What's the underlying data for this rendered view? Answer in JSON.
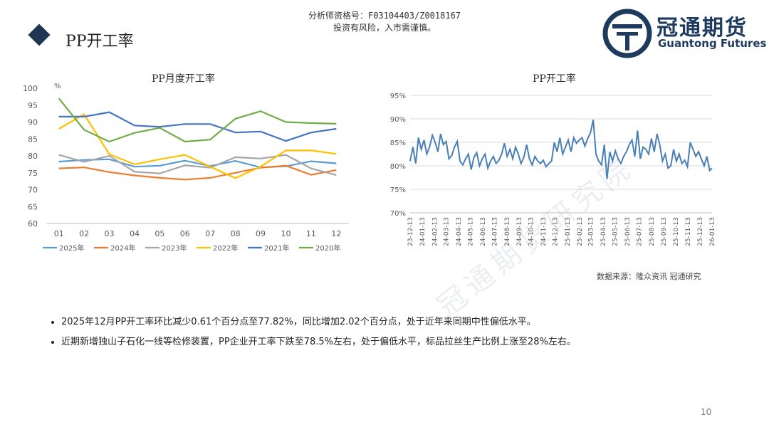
{
  "header": {
    "analyst_line1": "分析师资格号：F03104403/Z0018167",
    "analyst_line2": "投资有风险，入市需谨慎。",
    "page_title": "PP开工率",
    "logo_cn": "冠通期货",
    "logo_en": "Guantong Futures"
  },
  "colors": {
    "brand": "#1e3a5f"
  },
  "chart_data": [
    {
      "type": "line",
      "title": "PP月度开工率",
      "unit_mark": "%",
      "categories": [
        "01",
        "02",
        "03",
        "04",
        "05",
        "06",
        "07",
        "08",
        "09",
        "10",
        "11",
        "12"
      ],
      "ylim": [
        60,
        100
      ],
      "yticks": [
        60,
        65,
        70,
        75,
        80,
        85,
        90,
        95,
        100
      ],
      "grid": false,
      "legend_position": "bottom",
      "series": [
        {
          "name": "2025年",
          "color": "#5b9bd5",
          "values": [
            78.3,
            78.8,
            79.0,
            76.8,
            77.1,
            78.6,
            77.0,
            78.5,
            76.6,
            76.9,
            78.4,
            77.8
          ]
        },
        {
          "name": "2024年",
          "color": "#ed7d31",
          "values": [
            76.3,
            76.6,
            75.2,
            74.2,
            73.5,
            73.0,
            73.5,
            75.0,
            76.5,
            77.1,
            74.4,
            75.8
          ]
        },
        {
          "name": "2023年",
          "color": "#a5a5a5",
          "values": [
            80.3,
            78.2,
            80.0,
            75.3,
            74.8,
            77.2,
            76.5,
            79.6,
            79.2,
            80.3,
            76.3,
            74.3
          ]
        },
        {
          "name": "2022年",
          "color": "#ffc000",
          "values": [
            88.0,
            92.3,
            80.5,
            77.5,
            79.0,
            80.3,
            76.8,
            73.4,
            76.8,
            81.6,
            81.6,
            80.6
          ]
        },
        {
          "name": "2021年",
          "color": "#4472c4",
          "values": [
            91.6,
            91.6,
            92.9,
            89.0,
            88.6,
            89.4,
            89.4,
            86.9,
            87.2,
            84.4,
            86.9,
            88.0
          ]
        },
        {
          "name": "2020年",
          "color": "#70ad47",
          "values": [
            97.0,
            87.7,
            84.2,
            86.8,
            88.3,
            84.2,
            84.8,
            91.0,
            93.2,
            90.0,
            89.7,
            89.5
          ]
        }
      ]
    },
    {
      "type": "line",
      "title": "PP开工率",
      "ylim": [
        70,
        95
      ],
      "yticks": [
        "70%",
        "75%",
        "80%",
        "85%",
        "90%",
        "95%"
      ],
      "ytick_values": [
        70,
        75,
        80,
        85,
        90,
        95
      ],
      "grid": true,
      "xticks": [
        "23-12-13",
        "24-01-13",
        "24-02-13",
        "24-03-13",
        "24-04-13",
        "24-05-13",
        "24-06-13",
        "24-07-13",
        "24-08-13",
        "24-09-13",
        "24-10-13",
        "24-11-13",
        "24-12-13",
        "25-01-13",
        "25-02-13",
        "25-03-13",
        "25-04-13",
        "25-05-13",
        "25-06-13",
        "25-07-13",
        "25-08-13",
        "25-09-13",
        "25-10-13",
        "25-11-13",
        "25-12-13",
        "26-01-13"
      ],
      "series": [
        {
          "name": "",
          "color": "#4a7fb5",
          "x": [
            "23-12-13",
            "23-12-20",
            "23-12-27",
            "24-01-03",
            "24-01-10",
            "24-01-17",
            "24-01-24",
            "24-01-31",
            "24-02-07",
            "24-02-14",
            "24-02-21",
            "24-02-28",
            "24-03-06",
            "24-03-13",
            "24-03-20",
            "24-03-27",
            "24-04-03",
            "24-04-10",
            "24-04-17",
            "24-04-24",
            "24-05-01",
            "24-05-08",
            "24-05-15",
            "24-05-22",
            "24-05-29",
            "24-06-05",
            "24-06-12",
            "24-06-19",
            "24-06-26",
            "24-07-03",
            "24-07-10",
            "24-07-17",
            "24-07-24",
            "24-07-31",
            "24-08-07",
            "24-08-14",
            "24-08-21",
            "24-08-28",
            "24-09-04",
            "24-09-11",
            "24-09-18",
            "24-09-25",
            "24-10-02",
            "24-10-09",
            "24-10-16",
            "24-10-23",
            "24-10-30",
            "24-11-06",
            "24-11-13",
            "24-11-20",
            "24-11-27",
            "24-12-04",
            "24-12-11",
            "24-12-18",
            "24-12-25",
            "25-01-01",
            "25-01-08",
            "25-01-15",
            "25-01-22",
            "25-01-29",
            "25-02-05",
            "25-02-12",
            "25-02-19",
            "25-02-26",
            "25-03-05",
            "25-03-12",
            "25-03-19",
            "25-03-26",
            "25-04-02",
            "25-04-09",
            "25-04-16",
            "25-04-23",
            "25-04-30",
            "25-05-07",
            "25-05-14",
            "25-05-21",
            "25-05-28",
            "25-06-04",
            "25-06-11",
            "25-06-18",
            "25-06-25",
            "25-07-02",
            "25-07-09",
            "25-07-16",
            "25-07-23",
            "25-07-30",
            "25-08-06",
            "25-08-13",
            "25-08-20",
            "25-08-27",
            "25-09-03",
            "25-09-10",
            "25-09-17",
            "25-09-24",
            "25-10-01",
            "25-10-08",
            "25-10-15",
            "25-10-22",
            "25-10-29",
            "25-11-05",
            "25-11-12",
            "25-11-19",
            "25-11-26",
            "25-12-03",
            "25-12-10",
            "25-12-17",
            "25-12-24",
            "25-12-31",
            "26-01-07",
            "26-01-13"
          ],
          "values": [
            81.0,
            84.0,
            80.5,
            86.0,
            83.5,
            85.5,
            82.5,
            84.0,
            86.5,
            85.0,
            83.0,
            86.8,
            84.5,
            85.2,
            81.5,
            82.2,
            84.0,
            85.2,
            81.0,
            80.2,
            81.5,
            82.5,
            79.2,
            81.8,
            82.8,
            80.0,
            81.5,
            82.5,
            79.5,
            81.0,
            82.0,
            80.5,
            81.2,
            82.5,
            84.8,
            82.0,
            83.5,
            81.5,
            84.0,
            82.5,
            80.5,
            81.8,
            84.5,
            81.5,
            80.2,
            82.0,
            81.0,
            80.5,
            81.2,
            79.8,
            80.5,
            81.0,
            85.0,
            83.0,
            86.0,
            82.5,
            84.0,
            85.5,
            83.0,
            86.0,
            84.8,
            85.5,
            86.0,
            84.2,
            85.8,
            87.0,
            89.8,
            82.5,
            81.0,
            80.2,
            84.5,
            77.2,
            83.0,
            81.0,
            83.2,
            81.5,
            80.5,
            82.0,
            83.0,
            84.5,
            85.5,
            82.0,
            87.5,
            81.5,
            84.0,
            83.5,
            82.5,
            85.8,
            83.0,
            86.8,
            84.5,
            81.0,
            82.5,
            79.5,
            80.0,
            83.5,
            81.0,
            82.5,
            80.5,
            81.2,
            79.8,
            85.0,
            83.5,
            82.0,
            83.0,
            81.5,
            80.0,
            82.0,
            79.0,
            79.5
          ]
        }
      ],
      "source": "数据来源：隆众资讯 冠通研究"
    }
  ],
  "bullets": [
    "2025年12月PP开工率环比减少0.61个百分点至77.82%，同比增加2.02个百分点，处于近年来同期中性偏低水平。",
    "近期新增独山子石化一线等检修装置，PP企业开工率下跌至78.5%左右，处于偏低水平，标品拉丝生产比例上涨至28%左右。"
  ],
  "watermark": "冠通期货研究院",
  "page_number": "10"
}
